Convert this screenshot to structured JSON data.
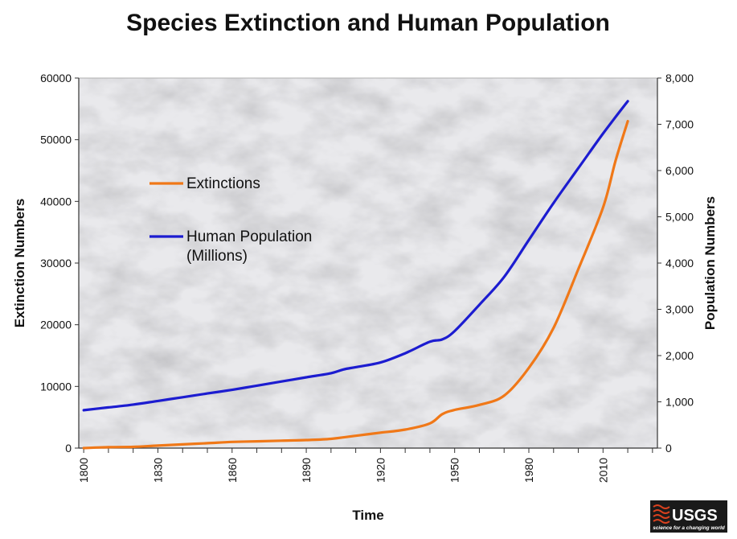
{
  "chart_data": {
    "type": "line",
    "title": "Species Extinction and Human Population",
    "xlabel": "Time",
    "ylabel_left": "Extinction Numbers",
    "ylabel_right": "Population Numbers",
    "xlim": [
      1798,
      2032
    ],
    "ylim_left": [
      0,
      60000
    ],
    "ylim_right": [
      0,
      8000
    ],
    "x_ticks": [
      "1800",
      "1830",
      "1860",
      "1890",
      "1920",
      "1950",
      "1980",
      "2010"
    ],
    "y_left_ticks": [
      "0",
      "10000",
      "20000",
      "30000",
      "40000",
      "50000",
      "60000"
    ],
    "y_right_ticks": [
      "0",
      "1,000",
      "2,000",
      "3,000",
      "4,000",
      "5,000",
      "6,000",
      "7,000",
      "8,000"
    ],
    "grid": false,
    "legend_position": "upper-left",
    "series": [
      {
        "name": "Extinctions",
        "axis": "left",
        "color": "#f07818",
        "x": [
          1800,
          1810,
          1820,
          1830,
          1840,
          1850,
          1860,
          1870,
          1880,
          1890,
          1900,
          1910,
          1920,
          1930,
          1940,
          1945,
          1950,
          1960,
          1970,
          1980,
          1990,
          2000,
          2010,
          2015,
          2020
        ],
        "y": [
          0,
          150,
          200,
          400,
          600,
          800,
          1000,
          1100,
          1200,
          1300,
          1500,
          2000,
          2500,
          3000,
          4000,
          5500,
          6200,
          7000,
          8500,
          13000,
          19500,
          29000,
          39000,
          46500,
          53000
        ]
      },
      {
        "name": "Human Population (Millions)",
        "axis": "right",
        "color": "#1c1cd0",
        "x": [
          1800,
          1810,
          1820,
          1830,
          1840,
          1850,
          1860,
          1870,
          1880,
          1890,
          1900,
          1905,
          1910,
          1920,
          1930,
          1940,
          1945,
          1950,
          1960,
          1970,
          1980,
          1990,
          2000,
          2010,
          2020
        ],
        "y": [
          820,
          880,
          940,
          1020,
          1100,
          1180,
          1260,
          1350,
          1440,
          1530,
          1620,
          1700,
          1750,
          1850,
          2050,
          2300,
          2350,
          2530,
          3100,
          3700,
          4500,
          5300,
          6050,
          6800,
          7500
        ]
      }
    ]
  },
  "logo": {
    "text": "USGS",
    "tagline": "science for a changing world"
  }
}
